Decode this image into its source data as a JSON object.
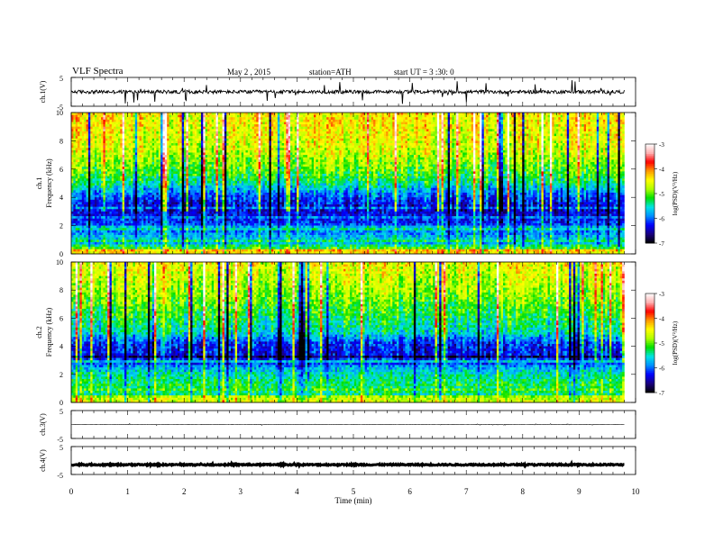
{
  "header": {
    "title": "VLF Spectra",
    "date": "May 2 , 2015",
    "station": "station=ATH",
    "start": "start UT = 3 :30: 0"
  },
  "colors": {
    "background": "#ffffff",
    "axis": "#000000",
    "colormap": [
      "#000000",
      "#1a0080",
      "#0000ff",
      "#0090ff",
      "#00e5e5",
      "#00e000",
      "#b0ff00",
      "#ffff00",
      "#ff9a00",
      "#ff0000",
      "#ffb0b0",
      "#ffffff"
    ]
  },
  "chart_data": [
    {
      "type": "line",
      "panel": "ch1-waveform",
      "ylabel": "ch.1(V)",
      "ylim": [
        -5,
        5
      ],
      "yticks": [
        "5",
        "-5"
      ],
      "xlim": [
        0,
        10
      ],
      "trace_end_min": 9.8,
      "baseline_V": 0.0,
      "noise_amplitude_V": 1.0,
      "spike_amplitude_V": 4.0
    },
    {
      "type": "heatmap",
      "panel": "ch1-spectrogram",
      "ylabel": "ch.1 Frequency (kHz)",
      "ylim": [
        0,
        10
      ],
      "yticks": [
        "0",
        "2",
        "4",
        "6",
        "8",
        "10"
      ],
      "xlim": [
        0,
        10
      ],
      "trace_end_min": 9.8,
      "colorbar": {
        "label": "log(PSD)(V²/Hz)",
        "range": [
          -7,
          -3
        ],
        "ticks": [
          "-3",
          "-4",
          "-5",
          "-6",
          "-7"
        ]
      },
      "profile_kHz": [
        0,
        0.5,
        1.5,
        2.5,
        3.3,
        4.2,
        5.0,
        6.0,
        7.5,
        10
      ],
      "profile_logPSD": [
        -4.2,
        -5.3,
        -5.9,
        -6.3,
        -6.4,
        -6.0,
        -5.4,
        -5.0,
        -4.6,
        -4.4
      ]
    },
    {
      "type": "heatmap",
      "panel": "ch2-spectrogram",
      "ylabel": "ch.2 Frequency (kHz)",
      "ylim": [
        0,
        10
      ],
      "yticks": [
        "0",
        "2",
        "4",
        "6",
        "8",
        "10"
      ],
      "xlim": [
        0,
        10
      ],
      "trace_end_min": 9.8,
      "colorbar": {
        "label": "log(PSD)(V²/Hz)",
        "range": [
          -7,
          -3
        ],
        "ticks": [
          "-3",
          "-4",
          "-5",
          "-6",
          "-7"
        ]
      },
      "profile_kHz": [
        0,
        0.8,
        2.0,
        3.3,
        4.2,
        5.0,
        6.0,
        7.5,
        10
      ],
      "profile_logPSD": [
        -4.5,
        -5.1,
        -5.5,
        -6.3,
        -6.2,
        -5.5,
        -5.3,
        -4.9,
        -4.5
      ]
    },
    {
      "type": "line",
      "panel": "ch3-waveform",
      "ylabel": "ch.3(V)",
      "ylim": [
        -5,
        5
      ],
      "yticks": [
        "5",
        "-5"
      ],
      "xlim": [
        0,
        10
      ],
      "trace_end_min": 9.8,
      "baseline_V": 0.0,
      "noise_amplitude_V": 0.1,
      "spike_amplitude_V": 0.3
    },
    {
      "type": "line",
      "panel": "ch4-waveform",
      "ylabel": "ch.4(V)",
      "ylim": [
        -5,
        5
      ],
      "yticks": [
        "5",
        "-5"
      ],
      "xlim": [
        0,
        10
      ],
      "trace_end_min": 9.8,
      "baseline_V": -1.5,
      "noise_amplitude_V": 0.4,
      "spike_amplitude_V": 0.4
    }
  ],
  "time_axis": {
    "xlabel": "Time (min)",
    "ticks": [
      "0",
      "1",
      "2",
      "3",
      "4",
      "5",
      "6",
      "7",
      "8",
      "9",
      "10"
    ]
  }
}
